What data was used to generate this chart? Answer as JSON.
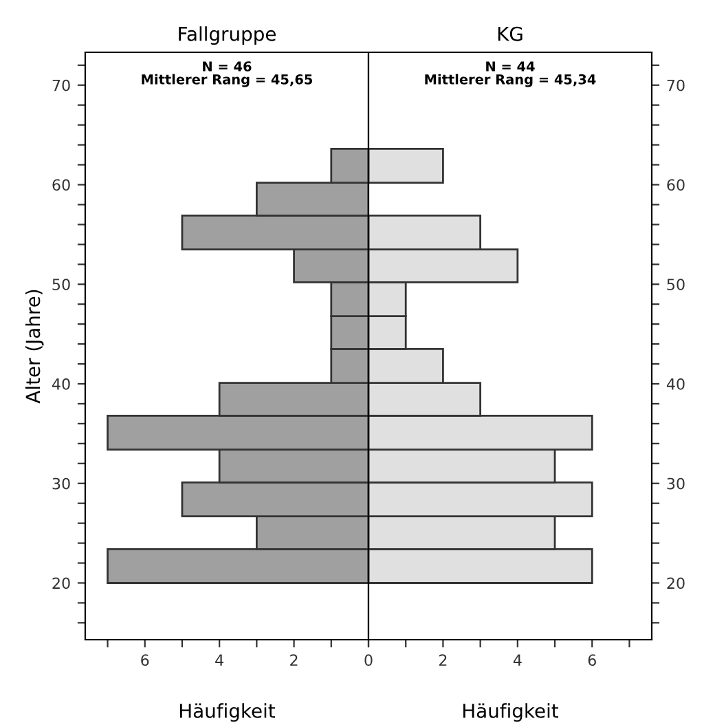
{
  "chart_data": [
    {
      "type": "histogram",
      "orientation": "horizontal",
      "title": "Fallgruppe",
      "xlabel": "Häufigkeit",
      "ylabel": "Alter (Jahre)",
      "annotations": [
        "N = 46",
        "Mittlerer Rang = 45,65"
      ],
      "color": "#a0a0a0",
      "bins": [
        20.0,
        23.4,
        26.7,
        30.1,
        33.4,
        36.8,
        40.1,
        43.5,
        46.8,
        50.2,
        53.5,
        56.9,
        60.2,
        63.6
      ],
      "values": [
        7,
        3,
        5,
        4,
        7,
        4,
        1,
        1,
        1,
        2,
        5,
        3,
        1
      ],
      "xlim": [
        7.6,
        0
      ],
      "xticks": [
        {
          "value": 7,
          "label": null
        },
        6,
        {
          "value": 5,
          "label": null
        },
        4,
        {
          "value": 3,
          "label": null
        },
        2,
        {
          "value": 1,
          "label": null
        },
        0
      ],
      "ylim": [
        14.3,
        73.3
      ],
      "yticks": [
        {
          "value": 16,
          "label": null
        },
        {
          "value": 18,
          "label": null
        },
        20,
        {
          "value": 22,
          "label": null
        },
        {
          "value": 24,
          "label": null
        },
        {
          "value": 26,
          "label": null
        },
        {
          "value": 28,
          "label": null
        },
        30,
        {
          "value": 32,
          "label": null
        },
        {
          "value": 34,
          "label": null
        },
        {
          "value": 36,
          "label": null
        },
        {
          "value": 38,
          "label": null
        },
        40,
        {
          "value": 42,
          "label": null
        },
        {
          "value": 44,
          "label": null
        },
        {
          "value": 46,
          "label": null
        },
        {
          "value": 48,
          "label": null
        },
        50,
        {
          "value": 52,
          "label": null
        },
        {
          "value": 54,
          "label": null
        },
        {
          "value": 56,
          "label": null
        },
        {
          "value": 58,
          "label": null
        },
        60,
        {
          "value": 62,
          "label": null
        },
        {
          "value": 64,
          "label": null
        },
        {
          "value": 66,
          "label": null
        },
        {
          "value": 68,
          "label": null
        },
        70,
        {
          "value": 72,
          "label": null
        }
      ]
    },
    {
      "type": "histogram",
      "orientation": "horizontal",
      "title": "KG",
      "xlabel": "Häufigkeit",
      "annotations": [
        "N = 44",
        "Mittlerer Rang = 45,34"
      ],
      "color": "#e0e0e0",
      "bins": [
        20.0,
        23.4,
        26.7,
        30.1,
        33.4,
        36.8,
        40.1,
        43.5,
        46.8,
        50.2,
        53.5,
        56.9,
        60.2,
        63.6
      ],
      "values": [
        6,
        5,
        6,
        5,
        6,
        3,
        2,
        1,
        1,
        4,
        3,
        0,
        2
      ],
      "xlim": [
        0,
        7.6
      ],
      "xticks": [
        {
          "value": 0,
          "label": null
        },
        {
          "value": 1,
          "label": null
        },
        2,
        {
          "value": 3,
          "label": null
        },
        4,
        {
          "value": 5,
          "label": null
        },
        6,
        {
          "value": 7,
          "label": null
        }
      ],
      "ylim": [
        14.3,
        73.3
      ],
      "yticks": [
        {
          "value": 16,
          "label": null
        },
        {
          "value": 18,
          "label": null
        },
        20,
        {
          "value": 22,
          "label": null
        },
        {
          "value": 24,
          "label": null
        },
        {
          "value": 26,
          "label": null
        },
        {
          "value": 28,
          "label": null
        },
        30,
        {
          "value": 32,
          "label": null
        },
        {
          "value": 34,
          "label": null
        },
        {
          "value": 36,
          "label": null
        },
        {
          "value": 38,
          "label": null
        },
        40,
        {
          "value": 42,
          "label": null
        },
        {
          "value": 44,
          "label": null
        },
        {
          "value": 46,
          "label": null
        },
        {
          "value": 48,
          "label": null
        },
        50,
        {
          "value": 52,
          "label": null
        },
        {
          "value": 54,
          "label": null
        },
        {
          "value": 56,
          "label": null
        },
        {
          "value": 58,
          "label": null
        },
        60,
        {
          "value": 62,
          "label": null
        },
        {
          "value": 64,
          "label": null
        },
        {
          "value": 66,
          "label": null
        },
        {
          "value": 68,
          "label": null
        },
        70,
        {
          "value": 72,
          "label": null
        }
      ]
    }
  ]
}
